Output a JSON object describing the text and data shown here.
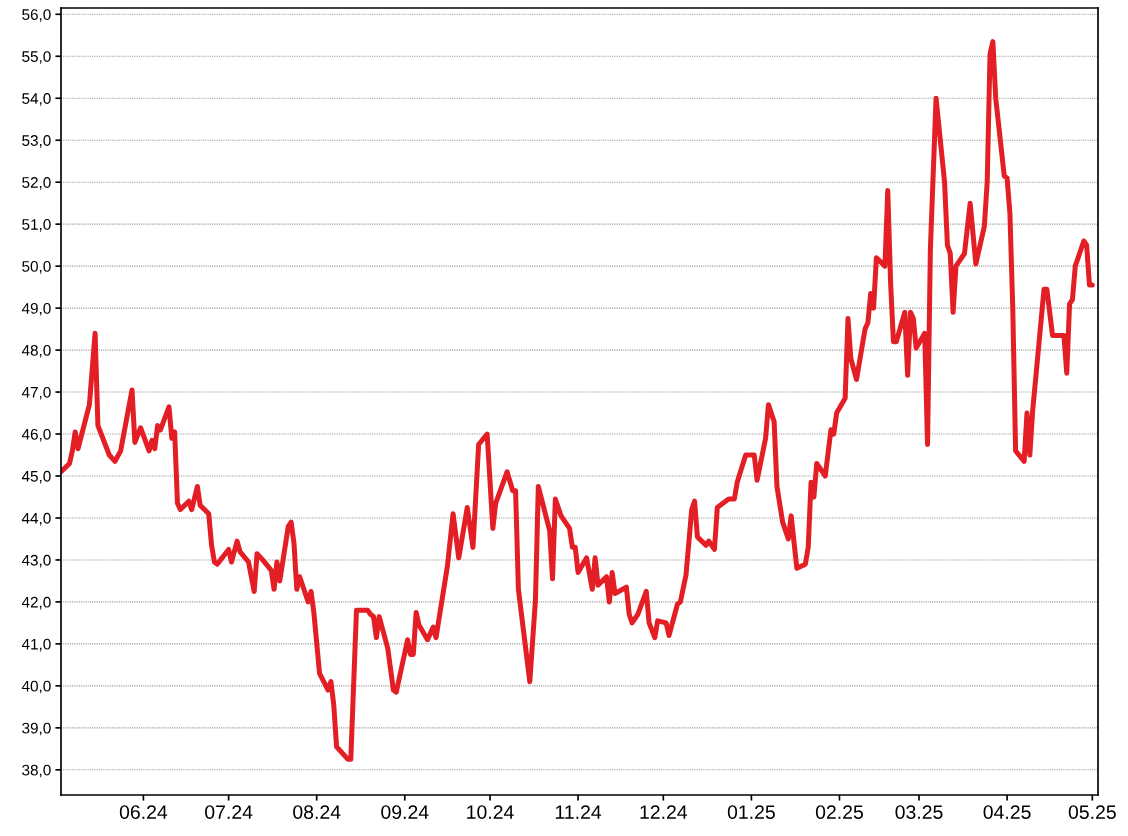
{
  "chart_data": {
    "type": "line",
    "grid": "y",
    "marker": "none",
    "line_style": "solid",
    "xlim": [
      "2024-05-03",
      "2025-05-03"
    ],
    "xticks": [
      {
        "value": "2024-06-01",
        "label": "06.24"
      },
      {
        "value": "2024-07-01",
        "label": "07.24"
      },
      {
        "value": "2024-08-01",
        "label": "08.24"
      },
      {
        "value": "2024-09-01",
        "label": "09.24"
      },
      {
        "value": "2024-10-01",
        "label": "10.24"
      },
      {
        "value": "2024-11-01",
        "label": "11.24"
      },
      {
        "value": "2024-12-01",
        "label": "12.24"
      },
      {
        "value": "2025-01-01",
        "label": "01.25"
      },
      {
        "value": "2025-02-01",
        "label": "02.25"
      },
      {
        "value": "2025-03-01",
        "label": "03.25"
      },
      {
        "value": "2025-04-01",
        "label": "04.25"
      },
      {
        "value": "2025-05-01",
        "label": "05.25"
      }
    ],
    "ylim": [
      37.4,
      56.15
    ],
    "yticks": [
      {
        "value": 38,
        "label": "38,0"
      },
      {
        "value": 39,
        "label": "39,0"
      },
      {
        "value": 40,
        "label": "40,0"
      },
      {
        "value": 41,
        "label": "41,0"
      },
      {
        "value": 42,
        "label": "42,0"
      },
      {
        "value": 43,
        "label": "43,0"
      },
      {
        "value": 44,
        "label": "44,0"
      },
      {
        "value": 45,
        "label": "45,0"
      },
      {
        "value": 46,
        "label": "46,0"
      },
      {
        "value": 47,
        "label": "47,0"
      },
      {
        "value": 48,
        "label": "48,0"
      },
      {
        "value": 49,
        "label": "49,0"
      },
      {
        "value": 50,
        "label": "50,0"
      },
      {
        "value": 51,
        "label": "51,0"
      },
      {
        "value": 52,
        "label": "52,0"
      },
      {
        "value": 53,
        "label": "53,0"
      },
      {
        "value": 54,
        "label": "54,0"
      },
      {
        "value": 55,
        "label": "55,0"
      },
      {
        "value": 56,
        "label": "56,0"
      }
    ],
    "series": [
      {
        "color": "#e31e24",
        "x": [
          "2024-05-03",
          "2024-05-06",
          "2024-05-07",
          "2024-05-08",
          "2024-05-09",
          "2024-05-13",
          "2024-05-15",
          "2024-05-16",
          "2024-05-20",
          "2024-05-22",
          "2024-05-24",
          "2024-05-28",
          "2024-05-29",
          "2024-05-31",
          "2024-06-03",
          "2024-06-04",
          "2024-06-05",
          "2024-06-06",
          "2024-06-07",
          "2024-06-10",
          "2024-06-11",
          "2024-06-12",
          "2024-06-13",
          "2024-06-14",
          "2024-06-17",
          "2024-06-18",
          "2024-06-20",
          "2024-06-21",
          "2024-06-24",
          "2024-06-25",
          "2024-06-26",
          "2024-06-27",
          "2024-07-01",
          "2024-07-02",
          "2024-07-04",
          "2024-07-05",
          "2024-07-08",
          "2024-07-10",
          "2024-07-11",
          "2024-07-13",
          "2024-07-16",
          "2024-07-17",
          "2024-07-18",
          "2024-07-19",
          "2024-07-22",
          "2024-07-23",
          "2024-07-24",
          "2024-07-25",
          "2024-07-26",
          "2024-07-29",
          "2024-07-30",
          "2024-07-31",
          "2024-08-02",
          "2024-08-05",
          "2024-08-06",
          "2024-08-07",
          "2024-08-08",
          "2024-08-12",
          "2024-08-13",
          "2024-08-15",
          "2024-08-19",
          "2024-08-20",
          "2024-08-21",
          "2024-08-22",
          "2024-08-23",
          "2024-08-26",
          "2024-08-28",
          "2024-08-29",
          "2024-09-02",
          "2024-09-03",
          "2024-09-04",
          "2024-09-05",
          "2024-09-06",
          "2024-09-09",
          "2024-09-11",
          "2024-09-12",
          "2024-09-16",
          "2024-09-18",
          "2024-09-20",
          "2024-09-23",
          "2024-09-25",
          "2024-09-27",
          "2024-09-30",
          "2024-10-02",
          "2024-10-03",
          "2024-10-07",
          "2024-10-09",
          "2024-10-10",
          "2024-10-11",
          "2024-10-15",
          "2024-10-17",
          "2024-10-18",
          "2024-10-22",
          "2024-10-23",
          "2024-10-24",
          "2024-10-26",
          "2024-10-29",
          "2024-10-30",
          "2024-10-31",
          "2024-11-01",
          "2024-11-04",
          "2024-11-06",
          "2024-11-07",
          "2024-11-08",
          "2024-11-11",
          "2024-11-12",
          "2024-11-13",
          "2024-11-14",
          "2024-11-18",
          "2024-11-19",
          "2024-11-20",
          "2024-11-22",
          "2024-11-25",
          "2024-11-26",
          "2024-11-28",
          "2024-11-29",
          "2024-12-02",
          "2024-12-03",
          "2024-12-06",
          "2024-12-07",
          "2024-12-09",
          "2024-12-11",
          "2024-12-12",
          "2024-12-13",
          "2024-12-16",
          "2024-12-17",
          "2024-12-19",
          "2024-12-20",
          "2024-12-24",
          "2024-12-26",
          "2024-12-27",
          "2024-12-30",
          "2025-01-02",
          "2025-01-03",
          "2025-01-06",
          "2025-01-07",
          "2025-01-09",
          "2025-01-10",
          "2025-01-12",
          "2025-01-14",
          "2025-01-15",
          "2025-01-17",
          "2025-01-20",
          "2025-01-21",
          "2025-01-22",
          "2025-01-23",
          "2025-01-24",
          "2025-01-27",
          "2025-01-29",
          "2025-01-30",
          "2025-01-31",
          "2025-02-03",
          "2025-02-04",
          "2025-02-05",
          "2025-02-07",
          "2025-02-10",
          "2025-02-11",
          "2025-02-12",
          "2025-02-13",
          "2025-02-14",
          "2025-02-17",
          "2025-02-18",
          "2025-02-19",
          "2025-02-20",
          "2025-02-21",
          "2025-02-24",
          "2025-02-25",
          "2025-02-26",
          "2025-02-27",
          "2025-02-28",
          "2025-03-03",
          "2025-03-04",
          "2025-03-05",
          "2025-03-07",
          "2025-03-10",
          "2025-03-11",
          "2025-03-12",
          "2025-03-13",
          "2025-03-14",
          "2025-03-17",
          "2025-03-19",
          "2025-03-21",
          "2025-03-24",
          "2025-03-25",
          "2025-03-26",
          "2025-03-27",
          "2025-03-28",
          "2025-03-31",
          "2025-04-01",
          "2025-04-02",
          "2025-04-03",
          "2025-04-04",
          "2025-04-07",
          "2025-04-08",
          "2025-04-09",
          "2025-04-10",
          "2025-04-12",
          "2025-04-14",
          "2025-04-15",
          "2025-04-17",
          "2025-04-21",
          "2025-04-22",
          "2025-04-23",
          "2025-04-24",
          "2025-04-25",
          "2025-04-28",
          "2025-04-29",
          "2025-04-30",
          "2025-05-01"
        ],
        "values": [
          45.1,
          45.3,
          45.6,
          46.05,
          45.65,
          46.7,
          48.4,
          46.2,
          45.5,
          45.35,
          45.6,
          47.05,
          45.8,
          46.15,
          45.6,
          45.85,
          45.65,
          46.2,
          46.1,
          46.65,
          45.9,
          46.05,
          44.35,
          44.2,
          44.4,
          44.2,
          44.75,
          44.3,
          44.1,
          43.35,
          42.95,
          42.9,
          43.25,
          42.95,
          43.45,
          43.2,
          42.95,
          42.25,
          43.15,
          43.0,
          42.75,
          42.3,
          42.95,
          42.5,
          43.8,
          43.9,
          43.4,
          42.3,
          42.6,
          42.0,
          42.25,
          41.75,
          40.3,
          39.9,
          40.1,
          39.55,
          38.55,
          38.25,
          38.25,
          41.8,
          41.8,
          41.7,
          41.65,
          41.15,
          41.65,
          40.9,
          39.9,
          39.85,
          41.1,
          40.75,
          40.75,
          41.75,
          41.45,
          41.1,
          41.4,
          41.15,
          42.85,
          44.1,
          43.05,
          44.25,
          43.3,
          45.75,
          46.0,
          43.75,
          44.35,
          45.1,
          44.65,
          44.65,
          42.3,
          40.1,
          42.05,
          44.75,
          43.7,
          42.55,
          44.45,
          44.05,
          43.75,
          43.3,
          43.3,
          42.7,
          43.05,
          42.3,
          43.05,
          42.4,
          42.6,
          42.0,
          42.7,
          42.2,
          42.35,
          41.7,
          41.5,
          41.7,
          42.25,
          41.5,
          41.15,
          41.55,
          41.5,
          41.2,
          41.95,
          42.0,
          42.65,
          44.2,
          44.4,
          43.55,
          43.35,
          43.45,
          43.25,
          44.25,
          44.45,
          44.45,
          44.85,
          45.5,
          45.5,
          44.9,
          45.9,
          46.7,
          46.3,
          44.75,
          43.9,
          43.5,
          44.05,
          42.8,
          42.9,
          43.3,
          44.85,
          44.5,
          45.3,
          45.0,
          46.1,
          46.0,
          46.5,
          46.85,
          48.75,
          47.8,
          47.3,
          48.5,
          48.65,
          49.35,
          49.0,
          50.2,
          50.0,
          51.8,
          49.6,
          48.2,
          48.2,
          48.9,
          47.4,
          48.9,
          48.75,
          48.05,
          48.4,
          45.75,
          50.4,
          54.0,
          52.0,
          50.5,
          50.3,
          48.9,
          50.0,
          50.3,
          51.5,
          50.05,
          50.95,
          52.0,
          55.05,
          55.35,
          54.0,
          52.15,
          52.1,
          51.25,
          49.0,
          45.6,
          45.35,
          46.5,
          45.5,
          46.55,
          48.0,
          49.45,
          49.45,
          48.35,
          48.35,
          47.45,
          49.1,
          49.2,
          50.0,
          50.6,
          50.5,
          49.55,
          49.55
        ]
      }
    ]
  }
}
